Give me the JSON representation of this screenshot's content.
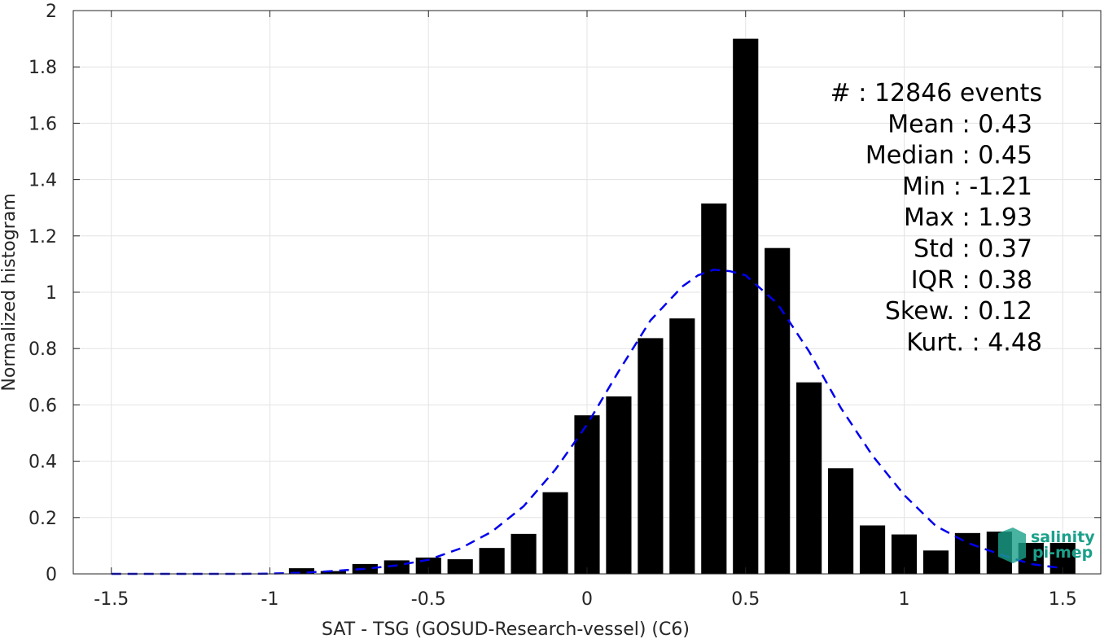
{
  "chart_data": {
    "type": "bar",
    "xlabel": "SAT - TSG (GOSUD-Research-vessel) (C6)",
    "ylabel": "Normalized histogram",
    "xlim": [
      -1.62,
      1.62
    ],
    "ylim": [
      0,
      2
    ],
    "grid": true,
    "x_ticks": [
      -1.5,
      -1,
      -0.5,
      0,
      0.5,
      1,
      1.5
    ],
    "x_tick_labels": [
      "-1.5",
      "-1",
      "-0.5",
      "0",
      "0.5",
      "1",
      "1.5"
    ],
    "y_ticks": [
      0,
      0.2,
      0.4,
      0.6,
      0.8,
      1,
      1.2,
      1.4,
      1.6,
      1.8,
      2
    ],
    "y_tick_labels": [
      "0",
      "0.2",
      "0.4",
      "0.6",
      "0.8",
      "1",
      "1.2",
      "1.4",
      "1.6",
      "1.8",
      "2"
    ],
    "bin_width": 0.1,
    "bars": {
      "color": "#000000",
      "x": [
        -1.5,
        -1.4,
        -1.3,
        -1.2,
        -1.1,
        -1.0,
        -0.9,
        -0.8,
        -0.7,
        -0.6,
        -0.5,
        -0.4,
        -0.3,
        -0.2,
        -0.1,
        0.0,
        0.1,
        0.2,
        0.3,
        0.4,
        0.5,
        0.6,
        0.7,
        0.8,
        0.9,
        1.0,
        1.1,
        1.2,
        1.3,
        1.4,
        1.5
      ],
      "values": [
        0,
        0,
        0,
        0,
        0,
        0,
        0.02,
        0.01,
        0.035,
        0.048,
        0.058,
        0.052,
        0.092,
        0.142,
        0.29,
        0.563,
        0.63,
        0.837,
        0.907,
        1.315,
        1.9,
        1.157,
        0.68,
        0.375,
        0.172,
        0.14,
        0.083,
        0.145,
        0.15,
        0.11,
        0.11
      ]
    },
    "fit_curve": {
      "style": "dashed",
      "color": "#0000ee",
      "x": [
        -1.5,
        -1.3,
        -1.1,
        -1.0,
        -0.9,
        -0.8,
        -0.7,
        -0.6,
        -0.5,
        -0.4,
        -0.3,
        -0.2,
        -0.1,
        0.0,
        0.1,
        0.2,
        0.3,
        0.35,
        0.4,
        0.45,
        0.5,
        0.6,
        0.7,
        0.8,
        0.9,
        1.0,
        1.1,
        1.2,
        1.3,
        1.4,
        1.5
      ],
      "y": [
        0.0,
        0.0,
        0.0,
        0.001,
        0.004,
        0.01,
        0.018,
        0.03,
        0.05,
        0.09,
        0.15,
        0.24,
        0.37,
        0.53,
        0.72,
        0.9,
        1.02,
        1.06,
        1.08,
        1.075,
        1.06,
        0.96,
        0.79,
        0.59,
        0.42,
        0.28,
        0.17,
        0.11,
        0.07,
        0.035,
        0.02
      ]
    },
    "stats": [
      {
        "label": "#  ",
        "value": ": 12846 events"
      },
      {
        "label": "Mean ",
        "value": ": 0.43"
      },
      {
        "label": "Median ",
        "value": ": 0.45"
      },
      {
        "label": "Min ",
        "value": ": -1.21"
      },
      {
        "label": "Max ",
        "value": ": 1.93"
      },
      {
        "label": "Std ",
        "value": ": 0.37"
      },
      {
        "label": "IQR ",
        "value": ": 0.38"
      },
      {
        "label": "Skew. ",
        "value": ": 0.12"
      },
      {
        "label": "Kurt. ",
        "value": ": 4.48"
      }
    ]
  },
  "logo": {
    "line1": "salinity",
    "line2": "pi-mep",
    "color": "#1aa08a"
  }
}
